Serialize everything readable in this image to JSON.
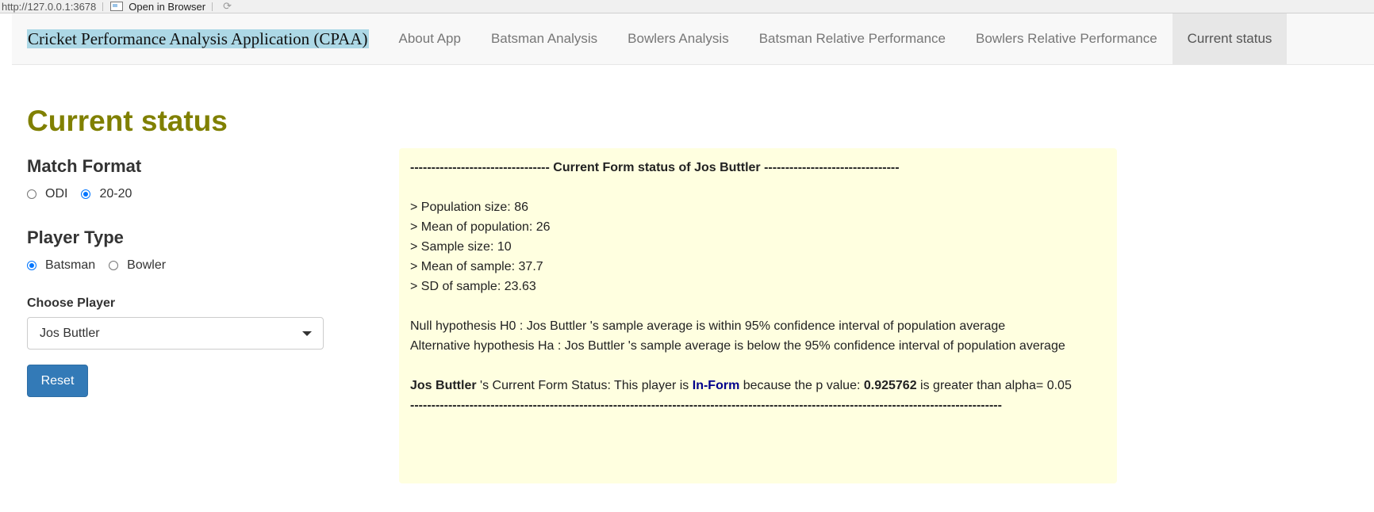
{
  "viewer": {
    "url": "http://127.0.0.1:3678",
    "open_browser": "Open in Browser"
  },
  "navbar": {
    "brand": "Cricket Performance Analysis Application (CPAA)",
    "tabs": [
      {
        "label": "About App"
      },
      {
        "label": "Batsman Analysis"
      },
      {
        "label": "Bowlers Analysis"
      },
      {
        "label": "Batsman Relative Performance"
      },
      {
        "label": "Bowlers Relative Performance"
      },
      {
        "label": "Current status",
        "active": true
      }
    ]
  },
  "page_title": "Current status",
  "sidebar": {
    "match_format": {
      "title": "Match Format",
      "options": [
        "ODI",
        "20-20"
      ],
      "selected": "20-20"
    },
    "player_type": {
      "title": "Player Type",
      "options": [
        "Batsman",
        "Bowler"
      ],
      "selected": "Batsman"
    },
    "choose_player": {
      "label": "Choose Player",
      "value": "Jos Buttler"
    },
    "reset_label": "Reset"
  },
  "output": {
    "header_prefix": "--------------------------------- ",
    "header_text": "Current Form status of Jos Buttler",
    "header_suffix": " --------------------------------",
    "lines": [
      "> Population size: 86",
      "> Mean of population: 26",
      "> Sample size: 10",
      "> Mean of sample: 37.7",
      "> SD of sample: 23.63"
    ],
    "null_hypothesis": "Null hypothesis H0 : Jos Buttler 's sample average is within 95% confidence interval of population average",
    "alt_hypothesis": "Alternative hypothesis Ha : Jos Buttler 's sample average is below the 95% confidence interval of population average",
    "result": {
      "player": "Jos Buttler",
      "text1": " 's Current Form Status: This player is ",
      "status": "In-Form",
      "text2": " because the p value: ",
      "p_value": "0.925762",
      "text3": " is greater than alpha= 0.05"
    },
    "footer_rule": "--------------------------------------------------------------------------------------------------------------------------------------------"
  },
  "colors": {
    "title_olive": "#808000",
    "panel_bg": "#ffffe0",
    "status_navy": "#00008b",
    "reset_blue": "#337ab7"
  }
}
